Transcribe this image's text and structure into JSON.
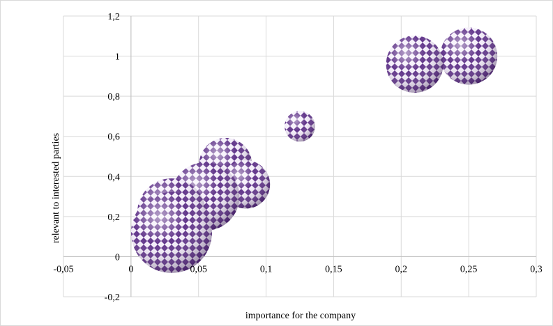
{
  "chart_data": {
    "type": "bubble",
    "xlabel": "importance for the company",
    "ylabel": "relevant to interested parties",
    "xlim": [
      -0.05,
      0.3
    ],
    "ylim": [
      -0.2,
      1.2
    ],
    "x_ticks": [
      -0.05,
      0,
      0.05,
      0.1,
      0.15,
      0.2,
      0.25,
      0.3
    ],
    "x_tick_labels": [
      "-0,05",
      "0",
      "0,05",
      "0,1",
      "0,15",
      "0,2",
      "0,25",
      "0,3"
    ],
    "y_ticks": [
      -0.2,
      0,
      0.2,
      0.4,
      0.6,
      0.8,
      1,
      1.2
    ],
    "y_tick_labels": [
      "-0,2",
      "0",
      "0,2",
      "0,4",
      "0,6",
      "0,8",
      "1",
      "1,2"
    ],
    "grid": true,
    "legend": "none",
    "colors": {
      "bubble_dark": "#5b2d86",
      "bubble_light": "#ffffff",
      "grid": "#d9d9d9",
      "axis": "#bfbfbf"
    },
    "points": [
      {
        "x": 0.25,
        "y": 1.0,
        "size": 0.7
      },
      {
        "x": 0.21,
        "y": 0.96,
        "size": 0.7
      },
      {
        "x": 0.125,
        "y": 0.65,
        "size": 0.2
      },
      {
        "x": 0.07,
        "y": 0.46,
        "size": 0.6
      },
      {
        "x": 0.085,
        "y": 0.36,
        "size": 0.5
      },
      {
        "x": 0.055,
        "y": 0.3,
        "size": 1.0
      },
      {
        "x": 0.03,
        "y": 0.22,
        "size": 1.0
      },
      {
        "x": 0.03,
        "y": 0.12,
        "size": 1.4
      }
    ]
  }
}
